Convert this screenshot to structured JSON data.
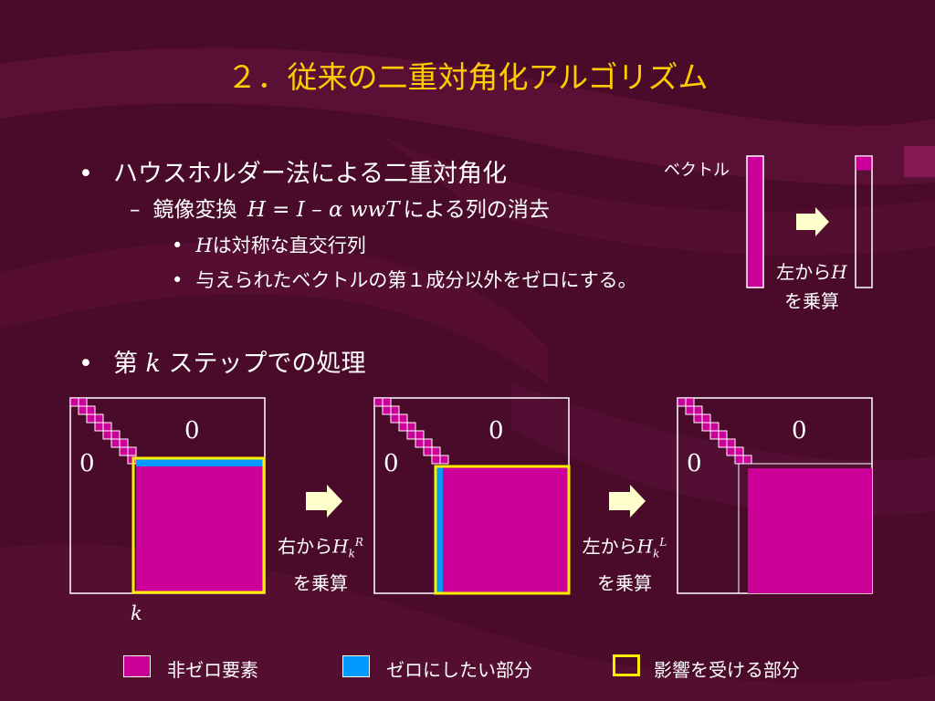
{
  "slide": {
    "title": "２．従来の二重対角化アルゴリズム",
    "bullets": {
      "householder": "ハウスホルダー法による二重対角化",
      "mirror_prefix": "鏡像変換",
      "mirror_formula": "H = I – α wwT",
      "mirror_suffix": "による列の消去",
      "h_var": "H",
      "h_sym": "は対称な直交行列",
      "zero_out": "与えられたベクトルの第１成分以外をゼロにする。",
      "step_prefix": "第",
      "step_k": "k",
      "step_suffix": "ステップでの処理"
    },
    "vector_demo": {
      "vector_label": "ベクトル",
      "mult_left": "左から",
      "mult_h": "H",
      "mult_by": "を乗算"
    },
    "step_diagram": {
      "zero_label": "0",
      "k_label": "k",
      "mult_right": "右から",
      "mult_left": "左から",
      "hk": "H",
      "hk_sub": "k",
      "hk_sup_right": "R",
      "hk_sup_left": "L",
      "mult_by": "を乗算"
    },
    "legend": {
      "nonzero": "非ゼロ要素",
      "to_zero": "ゼロにしたい部分",
      "affected": "影響を受ける部分"
    },
    "colors": {
      "background": "#4a0a2a",
      "title": "#ffcc00",
      "nonzero": "#cc0099",
      "to_zero": "#0099ff",
      "affected": "#ffee00",
      "arrow": "#ffffcc"
    }
  }
}
